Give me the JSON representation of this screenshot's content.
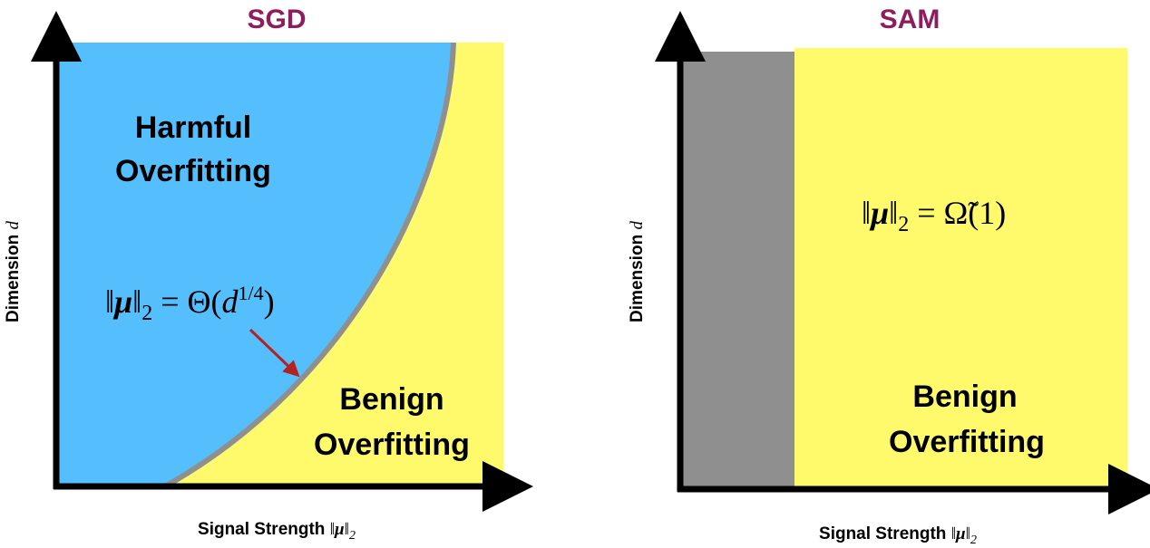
{
  "panels": [
    {
      "title": "SGD",
      "y_label": {
        "text": "Dimension",
        "var": "d"
      },
      "x_label": {
        "text": "Signal Strength",
        "norm_open": "‖",
        "mu": "μ",
        "norm_close": "‖",
        "sub": "2"
      },
      "regions": [
        {
          "lines": [
            "Harmful",
            "Overfitting"
          ]
        },
        {
          "lines": [
            "Benign",
            "Overfitting"
          ]
        }
      ],
      "formula": {
        "norm_open": "‖",
        "mu": "μ",
        "norm_close": "‖",
        "sub": "2",
        "rhs": " = Θ(",
        "var": "d",
        "sup": "1/4",
        "close": ")"
      }
    },
    {
      "title": "SAM",
      "y_label": {
        "text": "Dimension",
        "var": "d"
      },
      "x_label": {
        "text": "Signal Strength",
        "norm_open": "‖",
        "mu": "μ",
        "norm_close": "‖",
        "sub": "2"
      },
      "regions": [
        {
          "lines": [
            "Benign",
            "Overfitting"
          ]
        }
      ],
      "formula": {
        "norm_open": "‖",
        "mu": "μ",
        "norm_close": "‖",
        "sub": "2",
        "rhs": " = Ω̃(1)"
      }
    }
  ]
}
